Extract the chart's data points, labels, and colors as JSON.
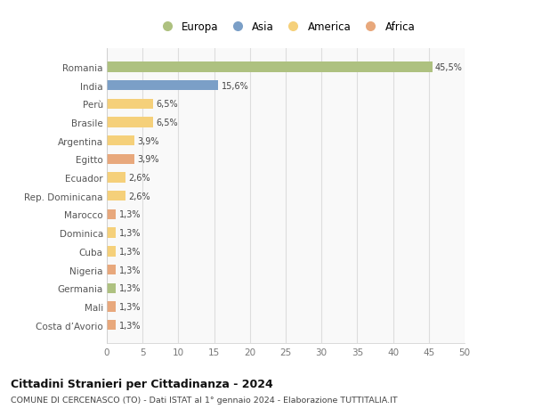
{
  "categories": [
    "Romania",
    "India",
    "Perù",
    "Brasile",
    "Argentina",
    "Egitto",
    "Ecuador",
    "Rep. Dominicana",
    "Marocco",
    "Dominica",
    "Cuba",
    "Nigeria",
    "Germania",
    "Mali",
    "Costa d’Avorio"
  ],
  "values": [
    45.5,
    15.6,
    6.5,
    6.5,
    3.9,
    3.9,
    2.6,
    2.6,
    1.3,
    1.3,
    1.3,
    1.3,
    1.3,
    1.3,
    1.3
  ],
  "labels": [
    "45,5%",
    "15,6%",
    "6,5%",
    "6,5%",
    "3,9%",
    "3,9%",
    "2,6%",
    "2,6%",
    "1,3%",
    "1,3%",
    "1,3%",
    "1,3%",
    "1,3%",
    "1,3%",
    "1,3%"
  ],
  "continents": [
    "Europa",
    "Asia",
    "America",
    "America",
    "America",
    "Africa",
    "America",
    "America",
    "Africa",
    "America",
    "America",
    "Africa",
    "Europa",
    "Africa",
    "Africa"
  ],
  "colors": {
    "Europa": "#aec180",
    "Asia": "#7b9fc7",
    "America": "#f5d07a",
    "Africa": "#e8a87c"
  },
  "legend_order": [
    "Europa",
    "Asia",
    "America",
    "Africa"
  ],
  "title": "Cittadini Stranieri per Cittadinanza - 2024",
  "subtitle": "COMUNE DI CERCENASCO (TO) - Dati ISTAT al 1° gennaio 2024 - Elaborazione TUTTITALIA.IT",
  "xlim": [
    0,
    50
  ],
  "xticks": [
    0,
    5,
    10,
    15,
    20,
    25,
    30,
    35,
    40,
    45,
    50
  ],
  "background_color": "#ffffff",
  "plot_bg_color": "#f9f9f9"
}
